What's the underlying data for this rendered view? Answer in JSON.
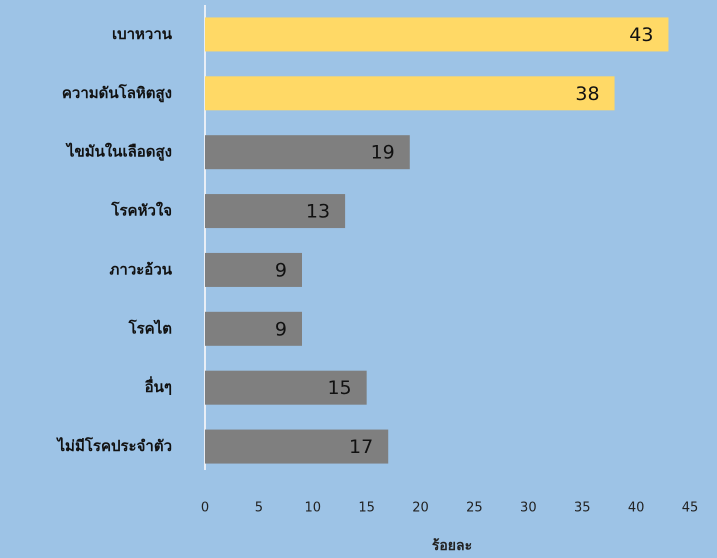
{
  "chart_data": {
    "type": "hbar",
    "categories": [
      "เบาหวาน",
      "ความดันโลหิตสูง",
      "ไขมันในเลือดสูง",
      "โรคหัวใจ",
      "ภาวะอ้วน",
      "โรคไต",
      "อื่นๆ",
      "ไม่มีโรคประจำตัว"
    ],
    "values": [
      43,
      38,
      19,
      13,
      9,
      9,
      15,
      17
    ],
    "colors": [
      "#ffd966",
      "#ffd966",
      "#7f7f7f",
      "#7f7f7f",
      "#7f7f7f",
      "#7f7f7f",
      "#7f7f7f",
      "#7f7f7f"
    ],
    "xlabel": "ร้อยละ",
    "xlim": [
      0,
      45
    ],
    "xticks": [
      0,
      5,
      10,
      15,
      20,
      25,
      30,
      35,
      40,
      45
    ],
    "grid": false
  }
}
